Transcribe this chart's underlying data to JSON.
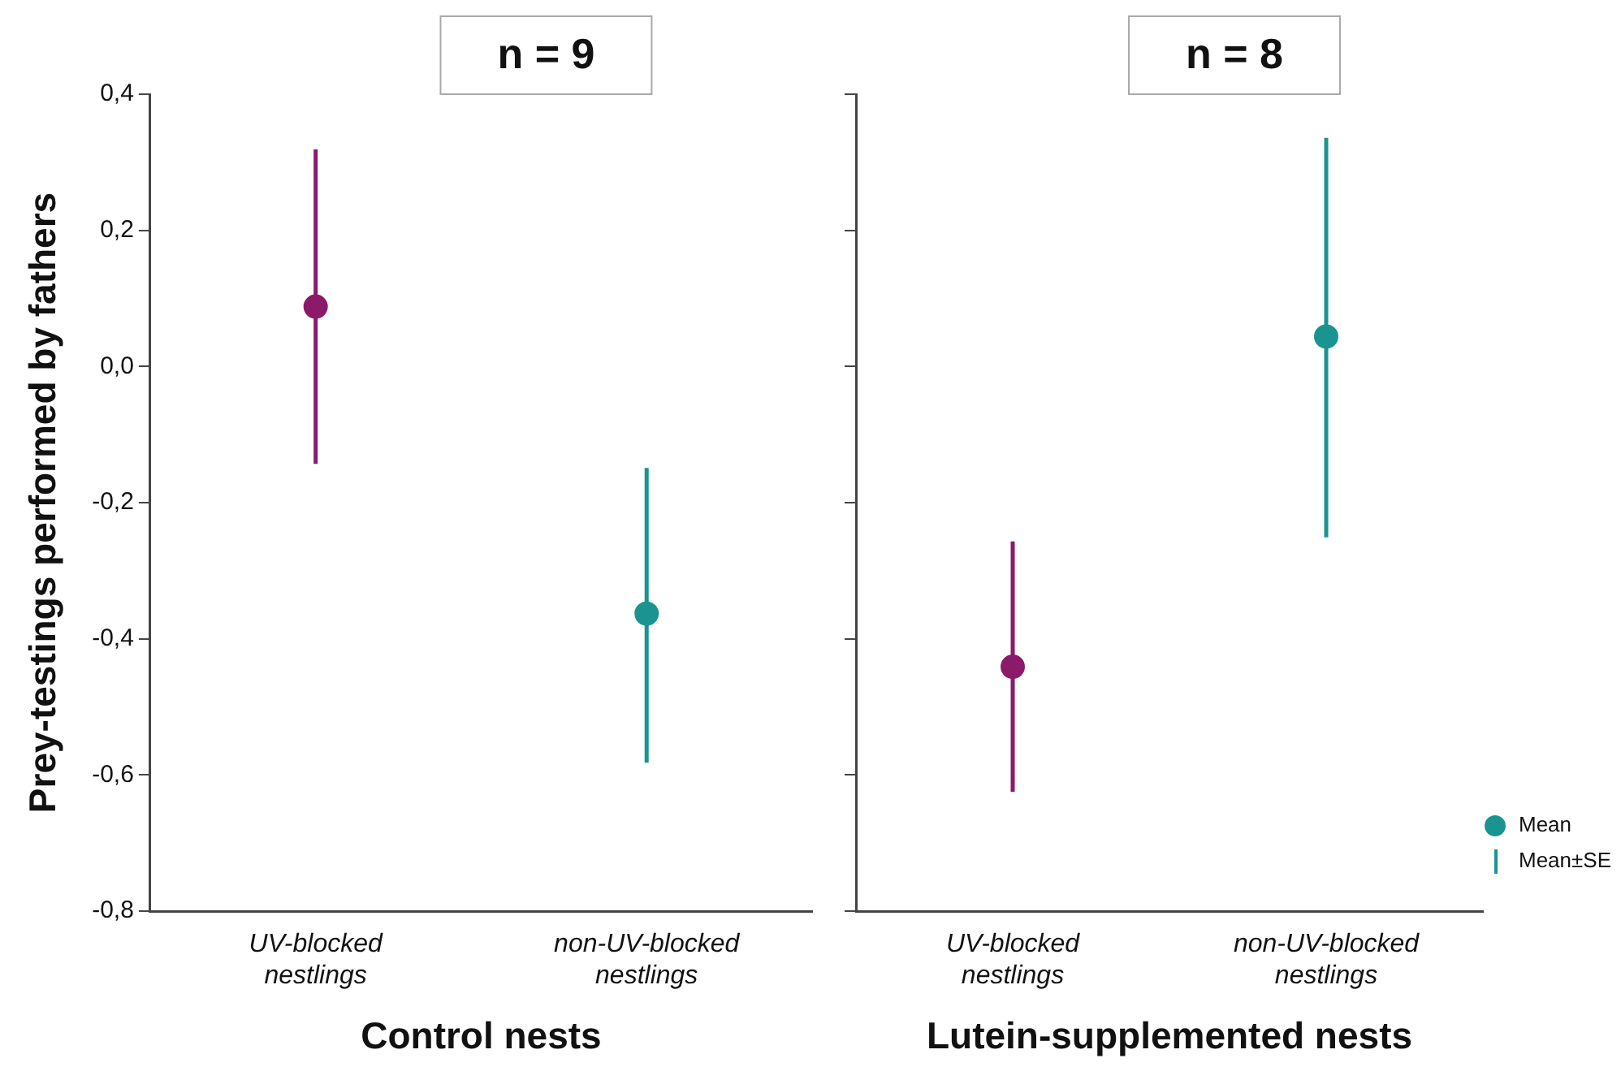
{
  "chart_data": [
    {
      "type": "scatter",
      "title": "n = 9",
      "xlabel": "Control nests",
      "ylabel": "Prey-testings performed by fathers",
      "categories": [
        "UV-blocked nestlings",
        "non-UV-blocked nestlings"
      ],
      "series": [
        {
          "values": [
            0.088,
            -0.363
          ],
          "colors": [
            "#8b1a6b",
            "#1a9490"
          ],
          "errors": [
            [
              -0.143,
              0.319
            ],
            [
              -0.582,
              -0.149
            ]
          ]
        }
      ],
      "ylim": [
        -0.8,
        0.4
      ],
      "yticks": [
        {
          "value": -0.8,
          "label": "-0,8"
        },
        {
          "value": -0.6,
          "label": "-0,6"
        },
        {
          "value": -0.4,
          "label": "-0,4"
        },
        {
          "value": -0.2,
          "label": "-0,2"
        },
        {
          "value": 0,
          "label": "0,0"
        },
        {
          "value": 0.2,
          "label": "0,2"
        },
        {
          "value": 0.4,
          "label": "0,4"
        }
      ],
      "marker": "circle",
      "grid": false
    },
    {
      "type": "scatter",
      "title": "n = 8",
      "xlabel": "Lutein-supplemented nests",
      "categories": [
        "UV-blocked nestlings",
        "non-UV-blocked nestlings"
      ],
      "series": [
        {
          "values": [
            -0.441,
            0.044
          ],
          "colors": [
            "#8b1a6b",
            "#1a9490"
          ],
          "errors": [
            [
              -0.625,
              -0.257
            ],
            [
              -0.251,
              0.336
            ]
          ]
        }
      ],
      "ylim": [
        -0.8,
        0.4
      ],
      "yticks": [
        {
          "value": -0.8,
          "label": null
        },
        {
          "value": -0.6,
          "label": null
        },
        {
          "value": -0.4,
          "label": null
        },
        {
          "value": -0.2,
          "label": null
        },
        {
          "value": 0,
          "label": null
        },
        {
          "value": 0.2,
          "label": null
        },
        {
          "value": 0.4,
          "label": null
        }
      ],
      "tick_labels": "x",
      "marker": "circle",
      "grid": false,
      "annotations": [
        "Mean",
        "Mean±SE"
      ]
    }
  ]
}
